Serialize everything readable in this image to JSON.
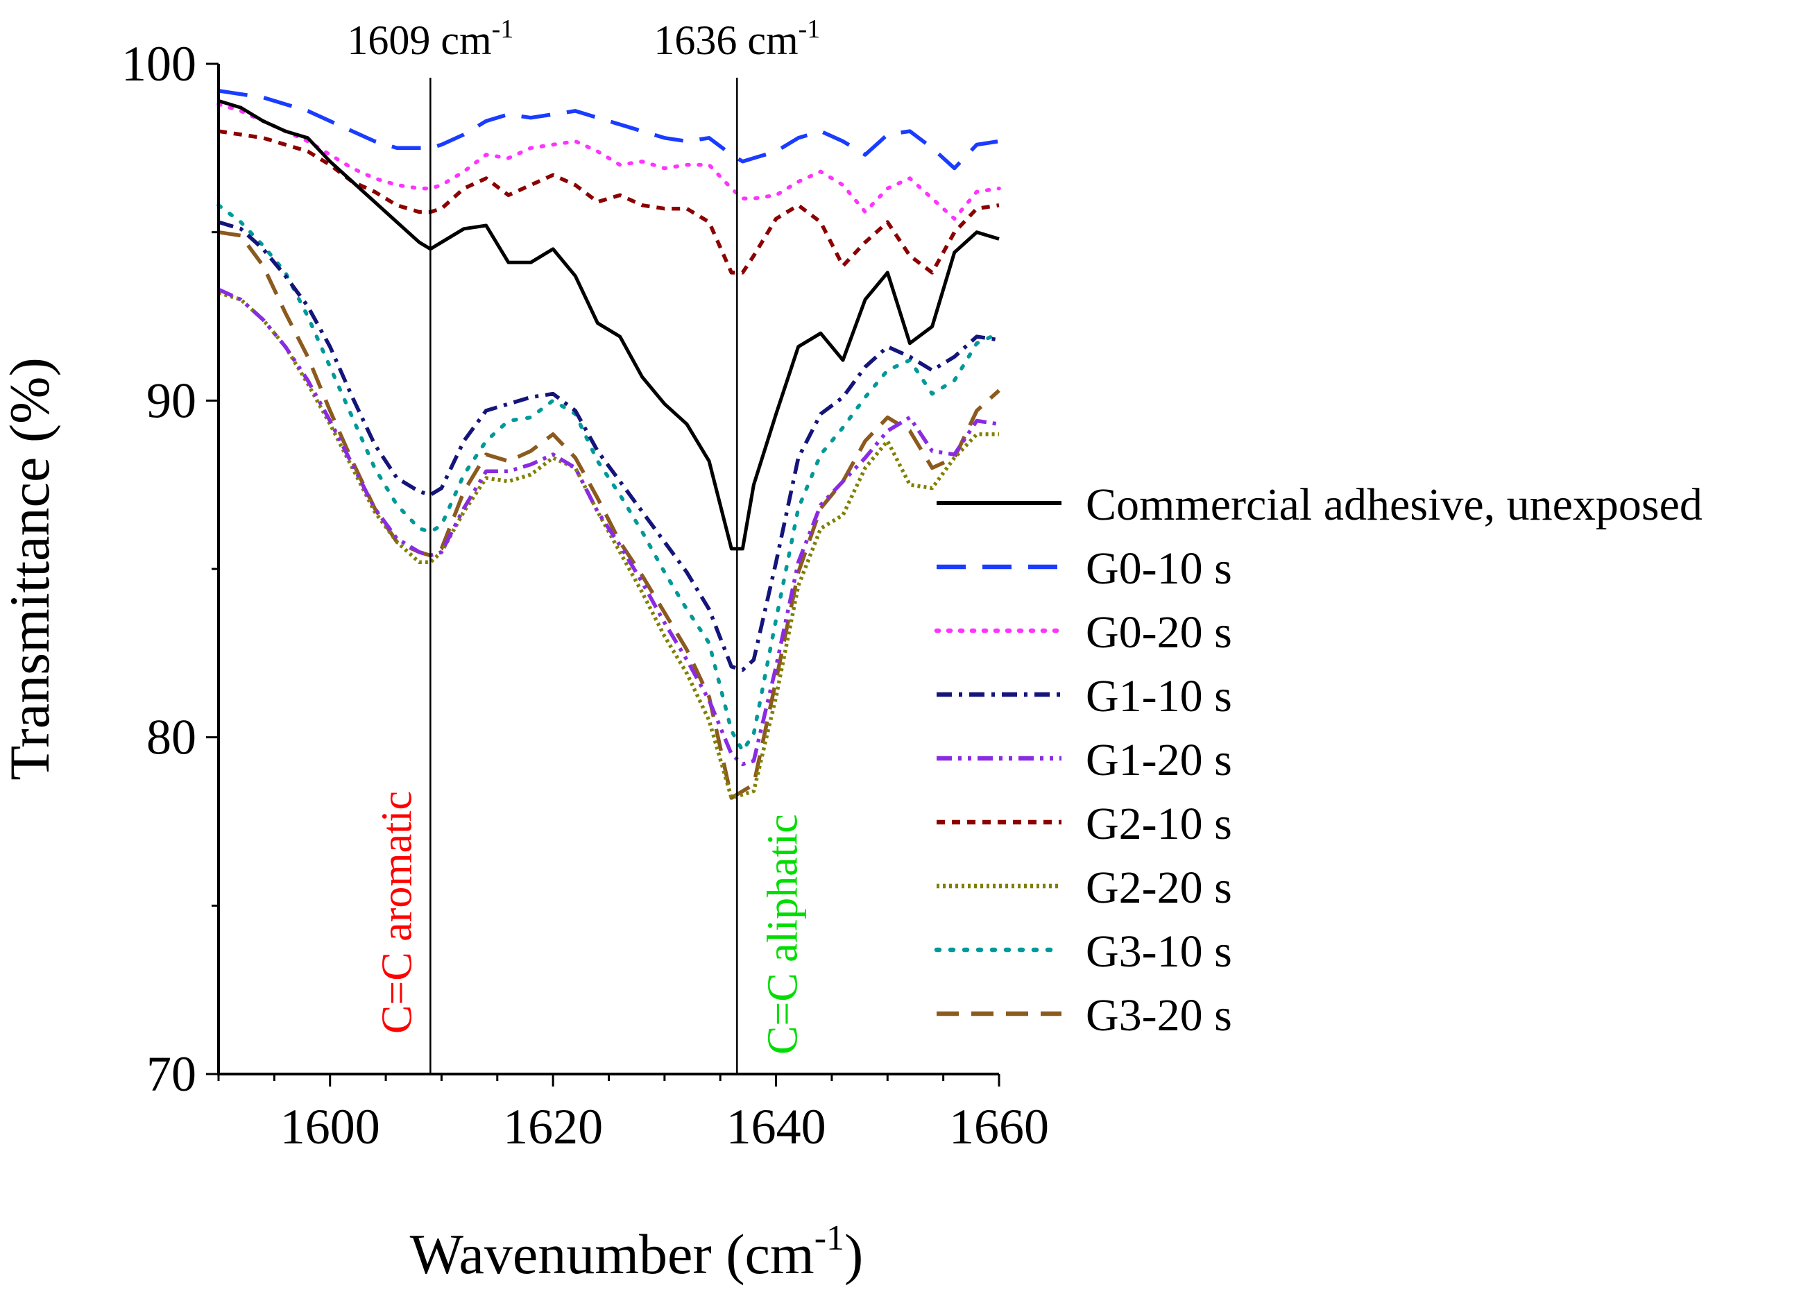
{
  "chart_data": {
    "type": "line",
    "title": "",
    "xlabel": "Wavenumber (cm-1)",
    "xlabel_parts": {
      "base": "Wavenumber (cm",
      "sup": "-1",
      "close": ")"
    },
    "ylabel": "Transmittance (%)",
    "xlim": [
      1590,
      1660
    ],
    "ylim": [
      70,
      100
    ],
    "x_ticks": [
      1600,
      1620,
      1640,
      1660
    ],
    "y_ticks": [
      70,
      80,
      90,
      100
    ],
    "grid": false,
    "legend_position": "right",
    "reference_lines": [
      {
        "x": 1609,
        "label": "1609 cm-1",
        "label_base": "1609 cm",
        "label_sup": "-1",
        "annotation": "C=C aromatic",
        "annotation_color": "#ff0000"
      },
      {
        "x": 1636.5,
        "label": "1636 cm-1",
        "label_base": "1636 cm",
        "label_sup": "-1",
        "annotation": "C=C aliphatic",
        "annotation_color": "#00dd00"
      }
    ],
    "x": [
      1590,
      1592,
      1594,
      1596,
      1598,
      1600,
      1602,
      1604,
      1606,
      1608,
      1609,
      1610,
      1612,
      1614,
      1616,
      1618,
      1620,
      1622,
      1624,
      1626,
      1628,
      1630,
      1632,
      1634,
      1636,
      1637,
      1638,
      1640,
      1642,
      1644,
      1646,
      1648,
      1650,
      1652,
      1654,
      1656,
      1658,
      1660
    ],
    "series": [
      {
        "name": "Commercial adhesive, unexposed",
        "color": "#000000",
        "dash": "none",
        "values": [
          98.9,
          98.7,
          98.3,
          98.0,
          97.8,
          97.1,
          96.5,
          95.9,
          95.3,
          94.7,
          94.5,
          94.7,
          95.1,
          95.2,
          94.1,
          94.1,
          94.5,
          93.7,
          92.3,
          91.9,
          90.7,
          89.9,
          89.3,
          88.2,
          85.6,
          85.6,
          87.5,
          89.6,
          91.6,
          92.0,
          91.2,
          93.0,
          93.8,
          91.7,
          92.2,
          94.4,
          95.0,
          94.8
        ]
      },
      {
        "name": "G0-10 s",
        "color": "#1a3cff",
        "dash": "42,24",
        "values": [
          99.2,
          99.1,
          99.0,
          98.8,
          98.6,
          98.3,
          98.0,
          97.7,
          97.5,
          97.5,
          97.5,
          97.6,
          97.9,
          98.3,
          98.5,
          98.4,
          98.5,
          98.6,
          98.4,
          98.2,
          98.0,
          97.8,
          97.7,
          97.8,
          97.3,
          97.1,
          97.2,
          97.4,
          97.8,
          98.0,
          97.7,
          97.3,
          97.9,
          98.0,
          97.5,
          96.9,
          97.6,
          97.7
        ]
      },
      {
        "name": "G0-20 s",
        "color": "#ff33ff",
        "dash": "3,14",
        "values": [
          98.8,
          98.6,
          98.3,
          98.0,
          97.7,
          97.3,
          96.9,
          96.6,
          96.4,
          96.3,
          96.3,
          96.4,
          96.8,
          97.3,
          97.2,
          97.5,
          97.6,
          97.7,
          97.4,
          97.0,
          97.1,
          96.9,
          97.0,
          97.0,
          96.3,
          96.0,
          96.0,
          96.1,
          96.5,
          96.8,
          96.4,
          95.6,
          96.3,
          96.6,
          96.0,
          95.4,
          96.2,
          96.3
        ]
      },
      {
        "name": "G1-10 s",
        "color": "#14147a",
        "dash": "22,10,5,10",
        "values": [
          95.3,
          95.1,
          94.5,
          93.7,
          92.8,
          91.6,
          90.1,
          88.7,
          87.7,
          87.3,
          87.2,
          87.4,
          88.8,
          89.7,
          89.9,
          90.1,
          90.2,
          89.7,
          88.5,
          87.6,
          86.7,
          85.8,
          84.9,
          83.8,
          82.1,
          82.0,
          82.3,
          85.2,
          88.3,
          89.6,
          90.1,
          91.0,
          91.6,
          91.3,
          90.9,
          91.3,
          91.9,
          91.8
        ]
      },
      {
        "name": "G1-20 s",
        "color": "#8a2be2",
        "dash": "22,9,5,9,5,9",
        "values": [
          93.3,
          93.0,
          92.4,
          91.6,
          90.6,
          89.4,
          88.1,
          86.8,
          85.9,
          85.5,
          85.4,
          85.5,
          86.8,
          87.9,
          87.9,
          88.1,
          88.4,
          88.0,
          86.7,
          85.7,
          84.6,
          83.4,
          82.3,
          81.1,
          79.5,
          79.2,
          79.3,
          82.1,
          85.2,
          86.9,
          87.6,
          88.3,
          89.1,
          89.5,
          88.5,
          88.4,
          89.4,
          89.3
        ]
      },
      {
        "name": "G2-10 s",
        "color": "#8b0000",
        "dash": "12,10",
        "values": [
          98.0,
          97.9,
          97.8,
          97.6,
          97.4,
          97.0,
          96.5,
          96.2,
          95.8,
          95.6,
          95.6,
          95.7,
          96.3,
          96.6,
          96.1,
          96.4,
          96.7,
          96.4,
          95.9,
          96.1,
          95.8,
          95.7,
          95.7,
          95.3,
          93.8,
          93.8,
          94.3,
          95.4,
          95.8,
          95.3,
          94.0,
          94.7,
          95.3,
          94.3,
          93.8,
          95.0,
          95.7,
          95.8
        ]
      },
      {
        "name": "G2-20 s",
        "color": "#808000",
        "dash": "4,5",
        "values": [
          93.2,
          93.0,
          92.4,
          91.6,
          90.5,
          89.3,
          88.0,
          86.7,
          85.8,
          85.2,
          85.2,
          85.5,
          86.7,
          87.7,
          87.6,
          87.8,
          88.3,
          88.0,
          86.7,
          85.5,
          84.3,
          83.0,
          81.9,
          80.5,
          78.2,
          78.3,
          78.4,
          81.2,
          84.5,
          86.2,
          86.6,
          88.0,
          88.8,
          87.5,
          87.4,
          88.3,
          89.0,
          89.0
        ]
      },
      {
        "name": "G3-10 s",
        "color": "#009999",
        "dash": "4,16",
        "values": [
          95.8,
          95.3,
          94.6,
          93.8,
          92.5,
          91.0,
          89.5,
          88.0,
          86.9,
          86.2,
          86.1,
          86.3,
          87.8,
          88.8,
          89.4,
          89.5,
          90.0,
          89.6,
          88.2,
          87.2,
          86.1,
          84.9,
          83.8,
          82.8,
          80.2,
          79.6,
          80.1,
          83.5,
          86.8,
          88.4,
          89.2,
          90.1,
          90.9,
          91.2,
          90.2,
          90.6,
          91.7,
          92.0
        ]
      },
      {
        "name": "G3-20 s",
        "color": "#8b5a1e",
        "dash": "32,18",
        "values": [
          95.0,
          94.9,
          94.0,
          92.6,
          91.3,
          89.7,
          88.2,
          86.8,
          85.8,
          85.5,
          85.4,
          85.6,
          87.3,
          88.4,
          88.2,
          88.5,
          89.0,
          88.3,
          87.1,
          85.8,
          84.8,
          83.7,
          82.6,
          81.2,
          78.2,
          78.4,
          78.6,
          81.7,
          84.9,
          86.8,
          87.6,
          88.8,
          89.5,
          89.1,
          88.0,
          88.3,
          89.7,
          90.3
        ]
      }
    ]
  }
}
